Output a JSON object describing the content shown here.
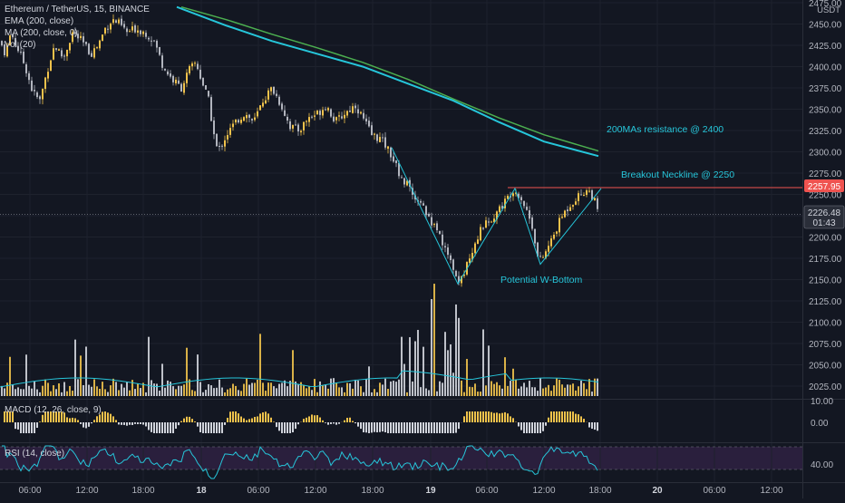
{
  "legend": {
    "symbol": "Ethereum / TetherUS, 15, BINANCE",
    "ema": "EMA (200, close)",
    "ma": "MA (200, close, 0)",
    "vol": "Vol (20)"
  },
  "price_axis": {
    "currency": "USDT",
    "ticks": [
      "2475.00",
      "2450.00",
      "2425.00",
      "2400.00",
      "2375.00",
      "2350.00",
      "2325.00",
      "2300.00",
      "2275.00",
      "2250.00",
      "2200.00",
      "2175.00",
      "2150.00",
      "2125.00",
      "2100.00",
      "2075.00",
      "2050.00",
      "2025.00"
    ],
    "last_price": "2226.48",
    "countdown": "01:43",
    "neckline_label": "2257.95"
  },
  "time_axis": [
    "06:00",
    "12:00",
    "18:00",
    "18",
    "06:00",
    "12:00",
    "18:00",
    "19",
    "06:00",
    "12:00",
    "18:00",
    "20",
    "06:00",
    "12:00"
  ],
  "annotations": {
    "resistance": "200MAs resistance @ 2400",
    "neckline": "Breakout Neckline @ 2250",
    "pattern": "Potential W-Bottom"
  },
  "macd": {
    "label": "MACD (12, 26, close, 9)",
    "ticks": [
      "10.00",
      "0.00"
    ]
  },
  "rsi": {
    "label": "RSI (14, close)",
    "ticks": [
      "40.00"
    ]
  },
  "colors": {
    "background": "#131722",
    "up": "#f0c24b",
    "down": "#b2b5be",
    "ema": "#26c6da",
    "ma": "#4caf50",
    "neckline": "#ef5350",
    "rsi_line": "#26c6da",
    "rsi_band": "#2a1f3d",
    "text": "#d1d4dc"
  },
  "chart_data": {
    "type": "candlestick",
    "symbol": "ETH/USDT",
    "timeframe": "15",
    "ylim": [
      2125,
      2475
    ],
    "price_path": [
      [
        0,
        2430
      ],
      [
        6,
        2415
      ],
      [
        12,
        2440
      ],
      [
        20,
        2420
      ],
      [
        28,
        2400
      ],
      [
        36,
        2370
      ],
      [
        44,
        2360
      ],
      [
        52,
        2395
      ],
      [
        60,
        2425
      ],
      [
        70,
        2410
      ],
      [
        80,
        2440
      ],
      [
        90,
        2430
      ],
      [
        100,
        2415
      ],
      [
        108,
        2425
      ],
      [
        116,
        2445
      ],
      [
        124,
        2455
      ],
      [
        132,
        2450
      ],
      [
        140,
        2440
      ],
      [
        150,
        2445
      ],
      [
        160,
        2440
      ],
      [
        170,
        2430
      ],
      [
        180,
        2400
      ],
      [
        190,
        2385
      ],
      [
        200,
        2375
      ],
      [
        208,
        2395
      ],
      [
        216,
        2405
      ],
      [
        222,
        2385
      ],
      [
        230,
        2360
      ],
      [
        236,
        2320
      ],
      [
        240,
        2300
      ],
      [
        250,
        2320
      ],
      [
        260,
        2335
      ],
      [
        270,
        2345
      ],
      [
        280,
        2335
      ],
      [
        290,
        2360
      ],
      [
        300,
        2375
      ],
      [
        310,
        2355
      ],
      [
        320,
        2330
      ],
      [
        330,
        2325
      ],
      [
        340,
        2340
      ],
      [
        350,
        2345
      ],
      [
        360,
        2355
      ],
      [
        370,
        2335
      ],
      [
        380,
        2345
      ],
      [
        392,
        2355
      ],
      [
        400,
        2340
      ],
      [
        410,
        2320
      ],
      [
        420,
        2315
      ],
      [
        430,
        2300
      ],
      [
        440,
        2275
      ],
      [
        450,
        2260
      ],
      [
        460,
        2240
      ],
      [
        470,
        2230
      ],
      [
        480,
        2210
      ],
      [
        490,
        2190
      ],
      [
        500,
        2160
      ],
      [
        506,
        2145
      ],
      [
        514,
        2165
      ],
      [
        524,
        2195
      ],
      [
        534,
        2215
      ],
      [
        544,
        2225
      ],
      [
        556,
        2240
      ],
      [
        566,
        2256
      ],
      [
        574,
        2248
      ],
      [
        582,
        2228
      ],
      [
        588,
        2210
      ],
      [
        594,
        2170
      ],
      [
        600,
        2178
      ],
      [
        610,
        2200
      ],
      [
        620,
        2225
      ],
      [
        630,
        2240
      ],
      [
        640,
        2250
      ],
      [
        648,
        2256
      ],
      [
        655,
        2245
      ],
      [
        660,
        2226
      ]
    ],
    "ema200": [
      [
        195,
        2470
      ],
      [
        250,
        2448
      ],
      [
        300,
        2430
      ],
      [
        350,
        2415
      ],
      [
        400,
        2400
      ],
      [
        450,
        2380
      ],
      [
        500,
        2360
      ],
      [
        550,
        2335
      ],
      [
        600,
        2312
      ],
      [
        660,
        2295
      ]
    ],
    "ma200": [
      [
        200,
        2470
      ],
      [
        250,
        2455
      ],
      [
        300,
        2438
      ],
      [
        350,
        2422
      ],
      [
        400,
        2405
      ],
      [
        450,
        2385
      ],
      [
        500,
        2362
      ],
      [
        550,
        2340
      ],
      [
        600,
        2320
      ],
      [
        660,
        2301
      ]
    ],
    "neckline": 2257.95,
    "last_price": 2226.48,
    "w_bottom": [
      [
        432,
        2305
      ],
      [
        505,
        2145
      ],
      [
        568,
        2257
      ],
      [
        596,
        2168
      ],
      [
        663,
        2257
      ]
    ]
  }
}
